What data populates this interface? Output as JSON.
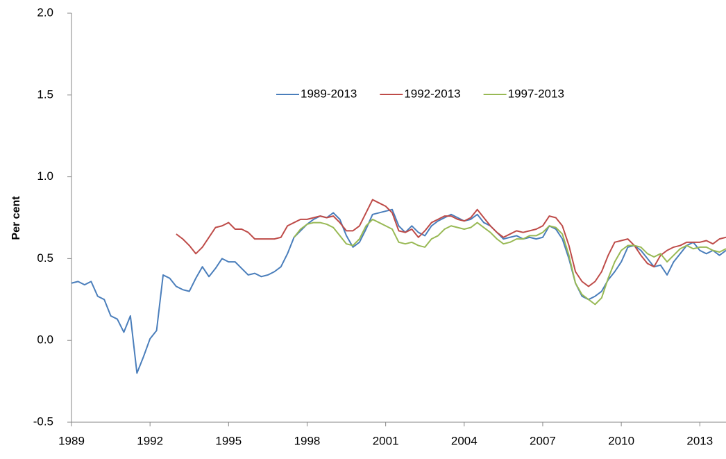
{
  "chart_data": {
    "type": "line",
    "y_label": "Per cent",
    "xlim": [
      1989,
      2014
    ],
    "xticks": [
      1989,
      1992,
      1995,
      1998,
      2001,
      2004,
      2007,
      2010,
      2013
    ],
    "ylim": [
      -0.5,
      2.0
    ],
    "yticks": [
      {
        "value": -0.5,
        "label": "-0.5"
      },
      {
        "value": 0,
        "label": "0.0"
      },
      0.5,
      {
        "value": 1,
        "label": "1.0"
      },
      1.5,
      {
        "value": 2,
        "label": "2.0"
      }
    ],
    "grid": false,
    "legend": "top",
    "x": [
      1989,
      1989.25,
      1989.5,
      1989.75,
      1990,
      1990.25,
      1990.5,
      1990.75,
      1991,
      1991.25,
      1991.5,
      1991.75,
      1992,
      1992.25,
      1992.5,
      1992.75,
      1993,
      1993.25,
      1993.5,
      1993.75,
      1994,
      1994.25,
      1994.5,
      1994.75,
      1995,
      1995.25,
      1995.5,
      1995.75,
      1996,
      1996.25,
      1996.5,
      1996.75,
      1997,
      1997.25,
      1997.5,
      1997.75,
      1998,
      1998.25,
      1998.5,
      1998.75,
      1999,
      1999.25,
      1999.5,
      1999.75,
      2000,
      2000.25,
      2000.5,
      2000.75,
      2001,
      2001.25,
      2001.5,
      2001.75,
      2002,
      2002.25,
      2002.5,
      2002.75,
      2003,
      2003.25,
      2003.5,
      2003.75,
      2004,
      2004.25,
      2004.5,
      2004.75,
      2005,
      2005.25,
      2005.5,
      2005.75,
      2006,
      2006.25,
      2006.5,
      2006.75,
      2007,
      2007.25,
      2007.5,
      2007.75,
      2008,
      2008.25,
      2008.5,
      2008.75,
      2009,
      2009.25,
      2009.5,
      2009.75,
      2010,
      2010.25,
      2010.5,
      2010.75,
      2011,
      2011.25,
      2011.5,
      2011.75,
      2012,
      2012.25,
      2012.5,
      2012.75,
      2013,
      2013.25,
      2013.5,
      2013.75,
      2014
    ],
    "series": [
      {
        "name": "1989-2013",
        "color": "#4a7ebb",
        "values": [
          0.35,
          0.36,
          0.34,
          0.36,
          0.27,
          0.25,
          0.15,
          0.13,
          0.05,
          0.15,
          -0.2,
          -0.1,
          0.01,
          0.06,
          0.4,
          0.38,
          0.33,
          0.31,
          0.3,
          0.38,
          0.45,
          0.39,
          0.44,
          0.5,
          0.48,
          0.48,
          0.44,
          0.4,
          0.41,
          0.39,
          0.4,
          0.42,
          0.45,
          0.53,
          0.63,
          0.67,
          0.71,
          0.74,
          0.76,
          0.75,
          0.78,
          0.74,
          0.64,
          0.57,
          0.6,
          0.68,
          0.77,
          0.78,
          0.79,
          0.8,
          0.7,
          0.66,
          0.7,
          0.66,
          0.64,
          0.7,
          0.73,
          0.75,
          0.77,
          0.75,
          0.73,
          0.74,
          0.77,
          0.72,
          0.7,
          0.66,
          0.62,
          0.63,
          0.64,
          0.62,
          0.63,
          0.62,
          0.63,
          0.7,
          0.68,
          0.62,
          0.5,
          0.35,
          0.27,
          0.25,
          0.27,
          0.3,
          0.37,
          0.42,
          0.48,
          0.57,
          0.58,
          0.55,
          0.5,
          0.45,
          0.46,
          0.4,
          0.48,
          0.53,
          0.58,
          0.6,
          0.55,
          0.53,
          0.55,
          0.52,
          0.55
        ]
      },
      {
        "name": "1992-2013",
        "color": "#be4b48",
        "values": [
          null,
          null,
          null,
          null,
          null,
          null,
          null,
          null,
          null,
          null,
          null,
          null,
          null,
          null,
          null,
          null,
          0.65,
          0.62,
          0.58,
          0.53,
          0.57,
          0.63,
          0.69,
          0.7,
          0.72,
          0.68,
          0.68,
          0.66,
          0.62,
          0.62,
          0.62,
          0.62,
          0.63,
          0.7,
          0.72,
          0.74,
          0.74,
          0.75,
          0.76,
          0.75,
          0.76,
          0.72,
          0.67,
          0.67,
          0.7,
          0.78,
          0.86,
          0.84,
          0.82,
          0.78,
          0.67,
          0.66,
          0.68,
          0.63,
          0.67,
          0.72,
          0.74,
          0.76,
          0.76,
          0.74,
          0.73,
          0.75,
          0.8,
          0.75,
          0.7,
          0.66,
          0.63,
          0.65,
          0.67,
          0.66,
          0.67,
          0.68,
          0.7,
          0.76,
          0.75,
          0.7,
          0.58,
          0.42,
          0.36,
          0.33,
          0.36,
          0.42,
          0.52,
          0.6,
          0.61,
          0.62,
          0.58,
          0.52,
          0.47,
          0.45,
          0.52,
          0.55,
          0.57,
          0.58,
          0.6,
          0.6,
          0.6,
          0.61,
          0.59,
          0.62,
          0.63
        ]
      },
      {
        "name": "1997-2013",
        "color": "#98b954",
        "values": [
          null,
          null,
          null,
          null,
          null,
          null,
          null,
          null,
          null,
          null,
          null,
          null,
          null,
          null,
          null,
          null,
          null,
          null,
          null,
          null,
          null,
          null,
          null,
          null,
          null,
          null,
          null,
          null,
          null,
          null,
          null,
          null,
          null,
          null,
          0.63,
          0.68,
          0.71,
          0.72,
          0.72,
          0.71,
          0.69,
          0.64,
          0.59,
          0.58,
          0.62,
          0.7,
          0.74,
          0.72,
          0.7,
          0.68,
          0.6,
          0.59,
          0.6,
          0.58,
          0.57,
          0.62,
          0.64,
          0.68,
          0.7,
          0.69,
          0.68,
          0.69,
          0.72,
          0.69,
          0.66,
          0.62,
          0.59,
          0.6,
          0.62,
          0.62,
          0.64,
          0.64,
          0.66,
          0.7,
          0.69,
          0.65,
          0.52,
          0.35,
          0.28,
          0.25,
          0.22,
          0.26,
          0.38,
          0.48,
          0.55,
          0.58,
          0.58,
          0.57,
          0.53,
          0.51,
          0.53,
          0.48,
          0.52,
          0.56,
          0.58,
          0.56,
          0.57,
          0.57,
          0.55,
          0.54,
          0.56
        ]
      }
    ]
  }
}
